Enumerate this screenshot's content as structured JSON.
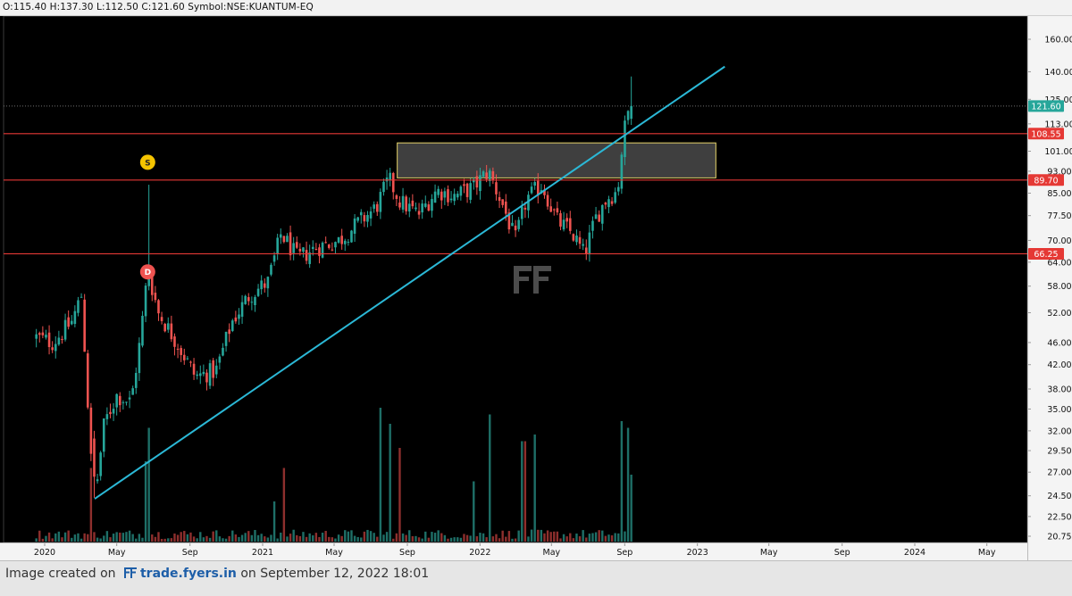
{
  "header": {
    "ohlc_text": "O:115.40 H:137.30 L:112.50 C:121.60 Symbol:NSE:KUANTUM-EQ"
  },
  "footer": {
    "prefix": "Image created on",
    "brand": "trade.fyers.in",
    "suffix": "on September 12, 2022 18:01"
  },
  "watermark_icon": "fyers-logo-icon",
  "colors": {
    "up": "#26a69a",
    "down": "#ef5350",
    "trendline": "#2bb8d6",
    "hline": "#e53935",
    "zone_border": "#e6d36a",
    "zone_fill": "#4a4a4a",
    "marker_s": "#f5c400",
    "marker_d": "#ef5350",
    "last_price_label": "#26a69a"
  },
  "chart_data": {
    "type": "candlestick",
    "scale": "log",
    "ylim": [
      20.75,
      160.0
    ],
    "y_ticks": [
      "160.00",
      "140.00",
      "125.00",
      "113.00",
      "101.00",
      "93.00",
      "85.00",
      "77.50",
      "70.00",
      "64.00",
      "58.00",
      "52.00",
      "46.00",
      "42.00",
      "38.00",
      "35.00",
      "32.00",
      "29.50",
      "27.00",
      "24.50",
      "22.50",
      "20.75"
    ],
    "x_ticks": [
      "2020",
      "May",
      "Sep",
      "2021",
      "May",
      "Sep",
      "2022",
      "May",
      "Sep",
      "2023",
      "May",
      "Sep",
      "2024",
      "May"
    ],
    "x_tick_dates": [
      "2020-01-01",
      "2020-05-01",
      "2020-09-01",
      "2021-01-01",
      "2021-05-01",
      "2021-09-01",
      "2022-01-01",
      "2022-05-01",
      "2022-09-01",
      "2023-01-01",
      "2023-05-01",
      "2023-09-01",
      "2024-01-01",
      "2024-05-01"
    ],
    "x_range": [
      "2019-10-24",
      "2024-07-08"
    ],
    "price_levels": [
      {
        "value": 108.55,
        "label": "108.55"
      },
      {
        "value": 89.7,
        "label": "89.70"
      },
      {
        "value": 66.25,
        "label": "66.25"
      }
    ],
    "last_price": {
      "value": 121.6,
      "label": "121.60"
    },
    "zone": {
      "from_date": "2021-08-15",
      "to_date": "2023-02-01",
      "low": 90.5,
      "high": 104.5
    },
    "trendline": {
      "start": {
        "date": "2020-03-25",
        "price": 24.2
      },
      "end": {
        "date": "2023-02-16",
        "price": 143.0
      }
    },
    "markers": [
      {
        "label": "S",
        "date": "2020-06-22",
        "price": 96.5,
        "kind": "split"
      },
      {
        "label": "D",
        "date": "2020-06-22",
        "price": 61.5,
        "kind": "dividend"
      }
    ],
    "price_path": [
      [
        "2019-12-18",
        47
      ],
      [
        "2020-01-15",
        46
      ],
      [
        "2020-02-15",
        50
      ],
      [
        "2020-03-03",
        56
      ],
      [
        "2020-03-20",
        27
      ],
      [
        "2020-03-27",
        25
      ],
      [
        "2020-04-10",
        33
      ],
      [
        "2020-05-01",
        37
      ],
      [
        "2020-05-25",
        36
      ],
      [
        "2020-06-10",
        47
      ],
      [
        "2020-06-22",
        62
      ],
      [
        "2020-07-10",
        52
      ],
      [
        "2020-08-10",
        46
      ],
      [
        "2020-09-10",
        40
      ],
      [
        "2020-10-15",
        41
      ],
      [
        "2020-11-10",
        50
      ],
      [
        "2020-12-10",
        56
      ],
      [
        "2021-01-10",
        59
      ],
      [
        "2021-02-01",
        72
      ],
      [
        "2021-03-01",
        65
      ],
      [
        "2021-04-01",
        68
      ],
      [
        "2021-05-10",
        70
      ],
      [
        "2021-06-15",
        76
      ],
      [
        "2021-07-10",
        80
      ],
      [
        "2021-08-01",
        90
      ],
      [
        "2021-08-20",
        82
      ],
      [
        "2021-09-20",
        78
      ],
      [
        "2021-10-20",
        86
      ],
      [
        "2021-11-20",
        84
      ],
      [
        "2021-12-20",
        87
      ],
      [
        "2022-01-15",
        93
      ],
      [
        "2022-02-10",
        80
      ],
      [
        "2022-03-01",
        70
      ],
      [
        "2022-03-20",
        83
      ],
      [
        "2022-04-15",
        88
      ],
      [
        "2022-05-10",
        76
      ],
      [
        "2022-06-05",
        72
      ],
      [
        "2022-06-25",
        66
      ],
      [
        "2022-07-15",
        77
      ],
      [
        "2022-08-01",
        83
      ],
      [
        "2022-08-20",
        86
      ],
      [
        "2022-08-28",
        104
      ],
      [
        "2022-09-05",
        118
      ],
      [
        "2022-09-12",
        121.6
      ]
    ],
    "volume_spikes": [
      [
        "2020-03-20",
        0.55
      ],
      [
        "2020-06-18",
        0.6
      ],
      [
        "2020-06-22",
        0.85
      ],
      [
        "2021-01-20",
        0.3
      ],
      [
        "2021-02-08",
        0.55
      ],
      [
        "2021-07-20",
        1.0
      ],
      [
        "2021-08-05",
        0.88
      ],
      [
        "2021-08-20",
        0.7
      ],
      [
        "2021-12-20",
        0.45
      ],
      [
        "2022-01-18",
        0.95
      ],
      [
        "2022-03-15",
        0.75
      ],
      [
        "2022-04-05",
        0.8
      ],
      [
        "2022-08-28",
        0.9
      ],
      [
        "2022-09-05",
        0.85
      ],
      [
        "2022-09-12",
        0.5
      ]
    ]
  }
}
